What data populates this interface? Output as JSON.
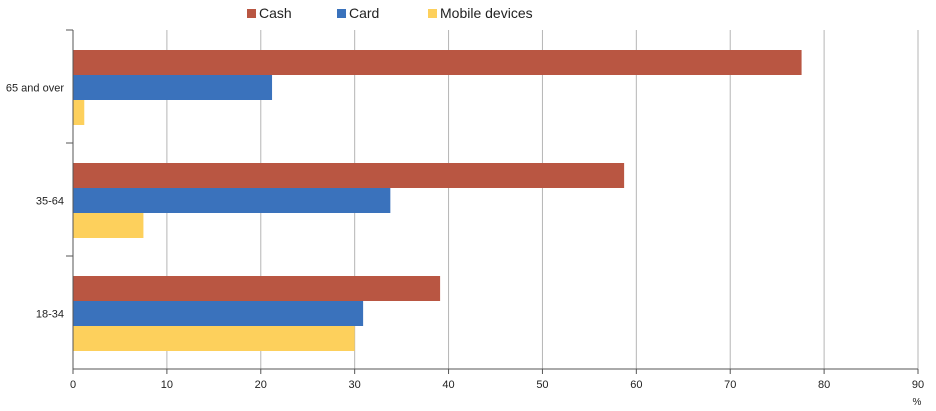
{
  "chart_data": {
    "type": "bar",
    "orientation": "horizontal",
    "categories": [
      "65 and over",
      "35-64",
      "18-34"
    ],
    "series": [
      {
        "name": "Cash",
        "color": "#b95642",
        "values": [
          77.6,
          58.7,
          39.1
        ]
      },
      {
        "name": "Card",
        "color": "#3a72bc",
        "values": [
          21.2,
          33.8,
          30.9
        ]
      },
      {
        "name": "Mobile devices",
        "color": "#fdd05c",
        "values": [
          1.2,
          7.5,
          30.0
        ]
      }
    ],
    "xlim": [
      0,
      90
    ],
    "xticks": [
      "0",
      "10",
      "20",
      "30",
      "40",
      "50",
      "60",
      "70",
      "80",
      "90"
    ],
    "x_unit": "%",
    "grid": true,
    "legend_position": "top"
  }
}
